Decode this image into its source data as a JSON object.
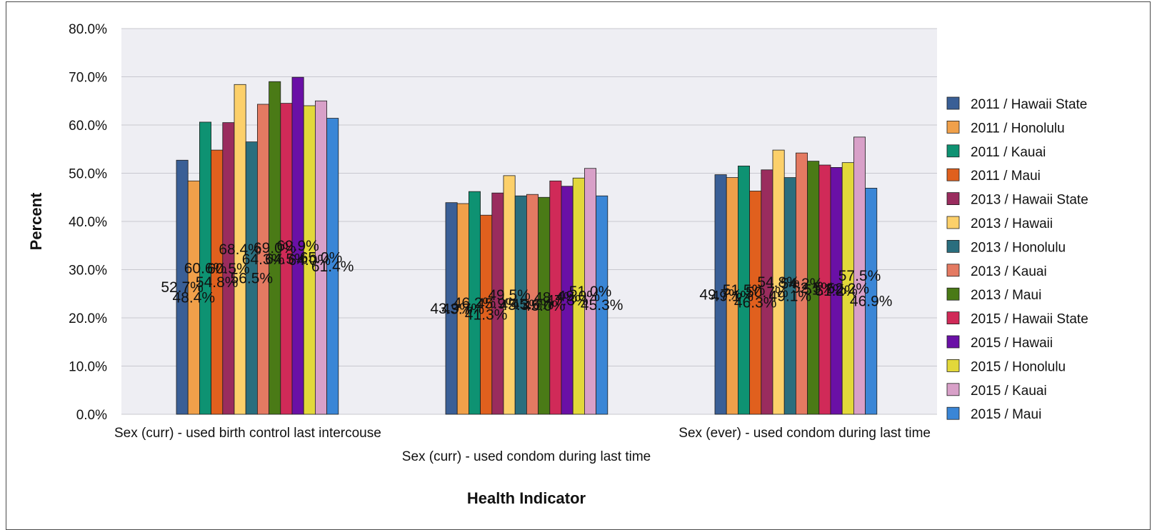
{
  "chart_data": {
    "type": "bar",
    "xlabel": "Health Indicator",
    "ylabel": "Percent",
    "ylim": [
      0,
      80
    ],
    "y_ticks": [
      "0.0%",
      "10.0%",
      "20.0%",
      "30.0%",
      "40.0%",
      "50.0%",
      "60.0%",
      "70.0%",
      "80.0%"
    ],
    "grid": true,
    "legend_position": "right",
    "categories": [
      "Sex (curr) - used birth control last intercouse",
      "Sex (curr) - used condom during last time",
      "Sex (ever) - used condom during last time"
    ],
    "series": [
      {
        "name": "2011 / Hawaii State",
        "color": "#3a5f96",
        "values": [
          52.7,
          43.9,
          49.7
        ],
        "labels": [
          "52.7%",
          "43.9%",
          "49.7%"
        ]
      },
      {
        "name": "2011 / Honolulu",
        "color": "#f0a04a",
        "values": [
          48.4,
          43.7,
          49.1
        ],
        "labels": [
          "48.4%",
          "43.7%",
          "49.1%"
        ]
      },
      {
        "name": "2011 / Kauai",
        "color": "#0e9272",
        "values": [
          60.6,
          46.2,
          51.5
        ],
        "labels": [
          "60.6%",
          "46.2%",
          "51.5%"
        ]
      },
      {
        "name": "2011 / Maui",
        "color": "#e0601e",
        "values": [
          54.8,
          41.3,
          46.3
        ],
        "labels": [
          "54.8%",
          "41.3%",
          "46.3%"
        ]
      },
      {
        "name": "2013 / Hawaii State",
        "color": "#9a2c5e",
        "values": [
          60.5,
          45.9,
          50.7
        ],
        "labels": [
          "60.5%",
          "45.9%",
          "50.7%"
        ]
      },
      {
        "name": "2013 / Hawaii",
        "color": "#fcd06a",
        "values": [
          68.4,
          49.5,
          54.8
        ],
        "labels": [
          "68.4%",
          "49.5%",
          "54.8%"
        ]
      },
      {
        "name": "2013 / Honolulu",
        "color": "#2a6e7e",
        "values": [
          56.5,
          45.3,
          49.1
        ],
        "labels": [
          "56.5%",
          "45.3%",
          "49.1%"
        ]
      },
      {
        "name": "2013 / Kauai",
        "color": "#e47a62",
        "values": [
          64.3,
          45.6,
          54.2
        ],
        "labels": [
          "64.3%",
          "45.6%",
          "54.2%"
        ]
      },
      {
        "name": "2013 / Maui",
        "color": "#4a7a16",
        "values": [
          69.0,
          45.0,
          52.5
        ],
        "labels": [
          "69.0%",
          "45.0%",
          "52.5%"
        ]
      },
      {
        "name": "2015 / Hawaii State",
        "color": "#d02a58",
        "values": [
          64.5,
          48.4,
          51.7
        ],
        "labels": [
          "64.5%",
          "48.4%",
          "51.7%"
        ]
      },
      {
        "name": "2015 / Hawaii",
        "color": "#6a10a6",
        "values": [
          69.9,
          47.3,
          51.2
        ],
        "labels": [
          "69.9%",
          "47.3%",
          "51.2%"
        ]
      },
      {
        "name": "2015 / Honolulu",
        "color": "#e2d83a",
        "values": [
          64.0,
          49.0,
          52.2
        ],
        "labels": [
          "64.0%",
          "49.0%",
          "52.2%"
        ]
      },
      {
        "name": "2015 / Kauai",
        "color": "#d8a0c8",
        "values": [
          65.0,
          51.0,
          57.5
        ],
        "labels": [
          "65.0%",
          "51.0%",
          "57.5%"
        ]
      },
      {
        "name": "2015 / Maui",
        "color": "#3a86d6",
        "values": [
          61.4,
          45.3,
          46.9
        ],
        "labels": [
          "61.4%",
          "45.3%",
          "46.9%"
        ]
      }
    ]
  }
}
